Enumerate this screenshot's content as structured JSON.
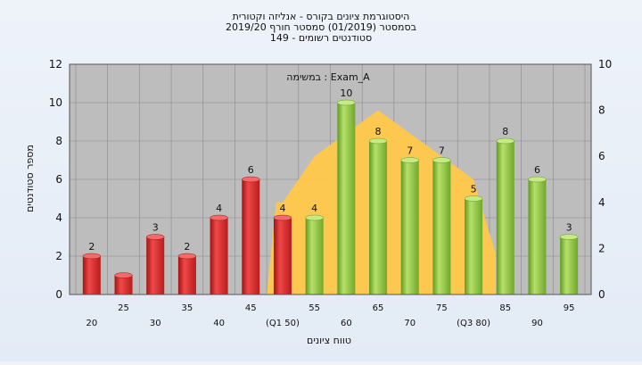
{
  "chart_data": {
    "type": "bar",
    "title_lines": [
      "היסטוגרמת ציונים בקורס - אנליזה וקטורית",
      "בסמסטר  (01/2019)  סמסטר חורף 2019/20",
      "סטודנטים רשומים - 149"
    ],
    "annotation": "במשימה : Exam_A",
    "xlabel": "טווח ציונים",
    "ylabel": "מספר סטודנטים",
    "categories": [
      "20",
      "25",
      "30",
      "35",
      "40",
      "45",
      "50",
      "55",
      "60",
      "65",
      "70",
      "75",
      "80",
      "85",
      "90",
      "95"
    ],
    "category_labels": [
      "20",
      "25",
      "30",
      "35",
      "40",
      "45",
      "(Q1 50)",
      "55",
      "60",
      "65",
      "70",
      "75",
      "(Q3 80)",
      "85",
      "90",
      "95"
    ],
    "values": [
      2,
      1,
      3,
      2,
      4,
      6,
      4,
      4,
      10,
      8,
      7,
      7,
      5,
      8,
      6,
      3
    ],
    "data_labels": [
      "2",
      "",
      "3",
      "2",
      "4",
      "6",
      "4",
      "4",
      "10",
      "8",
      "7",
      "7",
      "5",
      "8",
      "6",
      "3"
    ],
    "bar_colors": [
      "#d42a2a",
      "#d42a2a",
      "#d42a2a",
      "#d42a2a",
      "#d42a2a",
      "#d42a2a",
      "#d42a2a",
      "#8ec63f",
      "#8ec63f",
      "#8ec63f",
      "#8ec63f",
      "#8ec63f",
      "#8ec63f",
      "#8ec63f",
      "#8ec63f",
      "#8ec63f"
    ],
    "area_series": {
      "x": [
        "50",
        "55",
        "60",
        "65",
        "70",
        "75",
        "80"
      ],
      "values": [
        4,
        6,
        7,
        8,
        7,
        6,
        5
      ],
      "color": "#ffc84a"
    },
    "ylim_left": [
      0,
      12
    ],
    "yticks_left": [
      0,
      2,
      4,
      6,
      8,
      10,
      12
    ],
    "ylim_right": [
      0,
      10
    ],
    "yticks_right": [
      0,
      2,
      4,
      6,
      8,
      10
    ],
    "grid": true,
    "plot_background": "#bdbdbd"
  }
}
